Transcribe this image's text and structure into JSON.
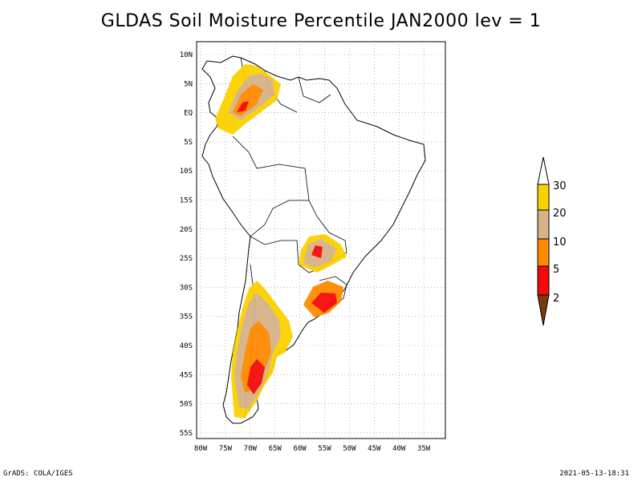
{
  "title": "GLDAS Soil Moisture Percentile JAN2000 lev = 1",
  "lat_ticks": [
    "10N",
    "5N",
    "EQ",
    "5S",
    "10S",
    "15S",
    "20S",
    "25S",
    "30S",
    "35S",
    "40S",
    "45S",
    "50S",
    "55S"
  ],
  "lon_ticks": [
    "80W",
    "75W",
    "70W",
    "65W",
    "60W",
    "55W",
    "50W",
    "45W",
    "40W",
    "35W"
  ],
  "colorbar": {
    "labels": [
      "2",
      "5",
      "10",
      "20",
      "30"
    ],
    "colors": {
      "below_2": "#7a3b0a",
      "2_5": "#f50a0a",
      "5_10": "#ff8a00",
      "10_20": "#d5b287",
      "20_30": "#fad100",
      "above_30": "#ffffff"
    }
  },
  "footer": {
    "left": "GrADS: COLA/IGES",
    "right": "2021-05-13-18:31"
  }
}
